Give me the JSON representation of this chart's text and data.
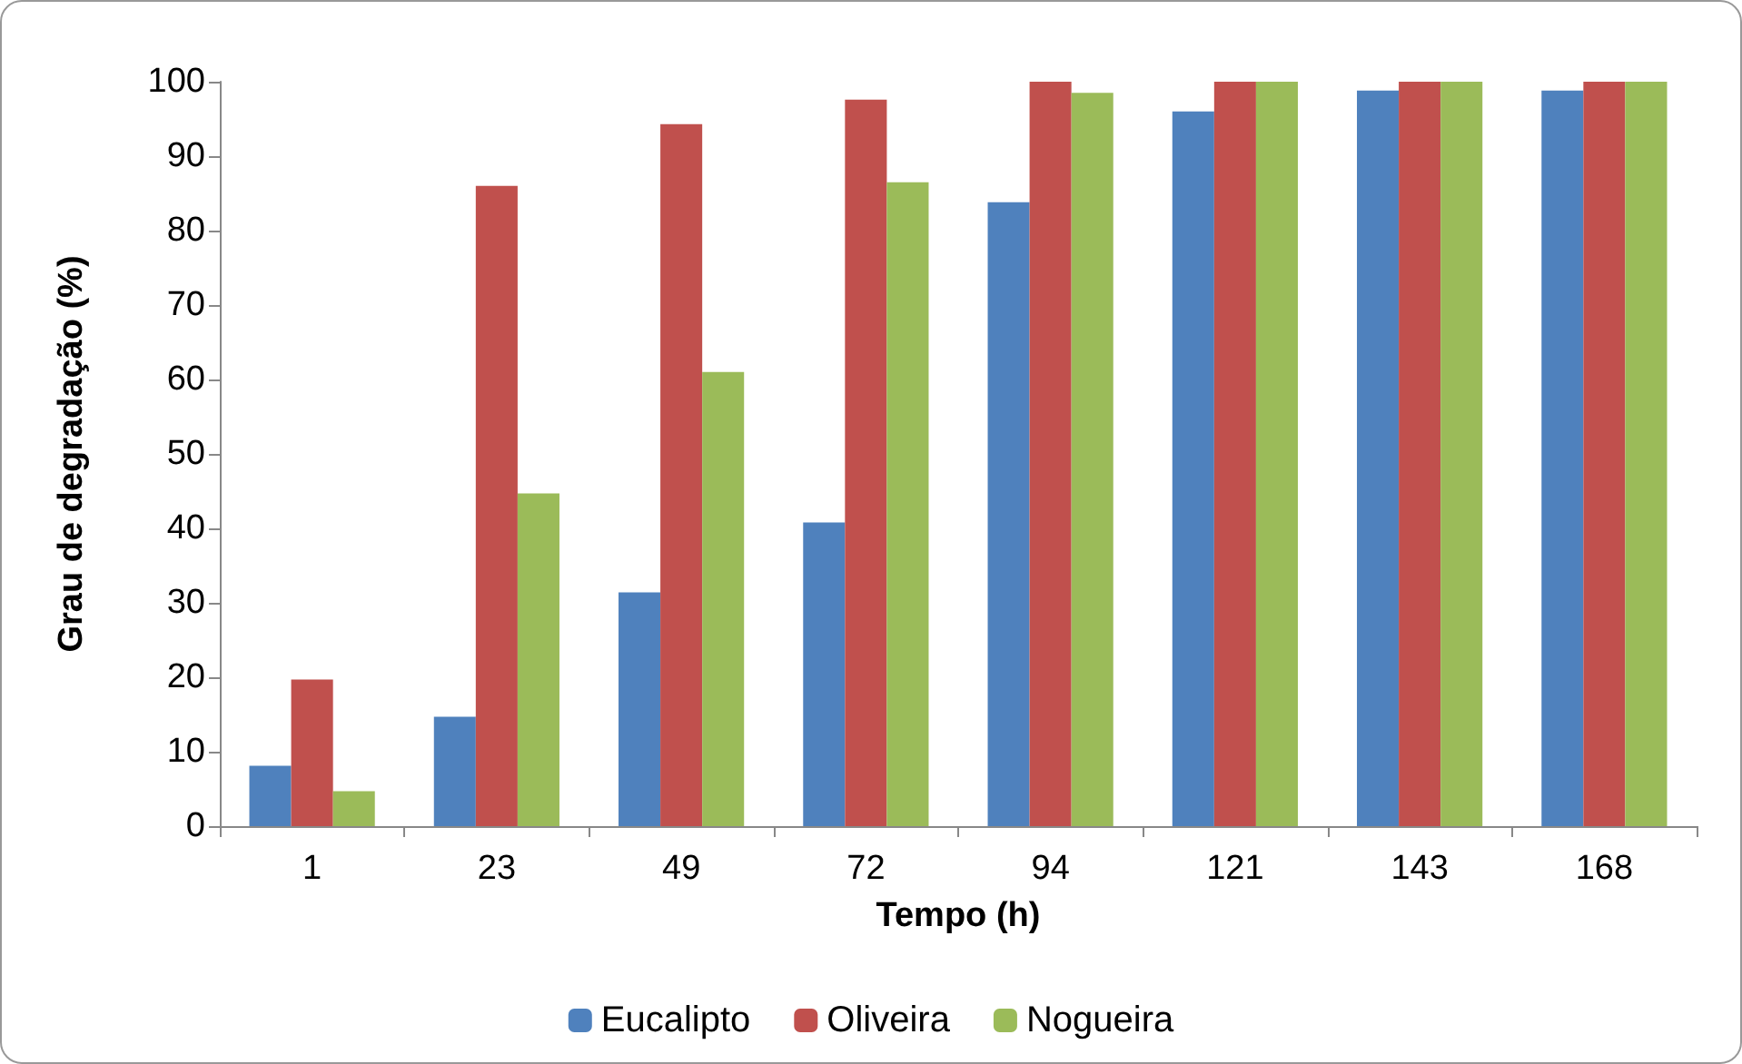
{
  "chart_data": {
    "type": "bar",
    "xlabel": "Tempo (h)",
    "ylabel": "Grau de degradação (%)",
    "categories": [
      "1",
      "23",
      "49",
      "72",
      "94",
      "121",
      "143",
      "168"
    ],
    "series": [
      {
        "name": "Eucalipto",
        "color": "#4f81bd",
        "values": [
          8.1,
          14.7,
          31.4,
          40.8,
          83.8,
          96,
          98.8,
          98.8
        ]
      },
      {
        "name": "Oliveira",
        "color": "#c0504d",
        "values": [
          19.7,
          86,
          94.3,
          97.6,
          100,
          100,
          100,
          100
        ]
      },
      {
        "name": "Nogueira",
        "color": "#9bbb59",
        "values": [
          4.7,
          44.7,
          61,
          86.5,
          98.5,
          100,
          100,
          100
        ]
      }
    ],
    "ylim": [
      0,
      100
    ],
    "yticks": [
      0,
      10,
      20,
      30,
      40,
      50,
      60,
      70,
      80,
      90,
      100
    ],
    "grid": false,
    "legend": "bottom"
  }
}
